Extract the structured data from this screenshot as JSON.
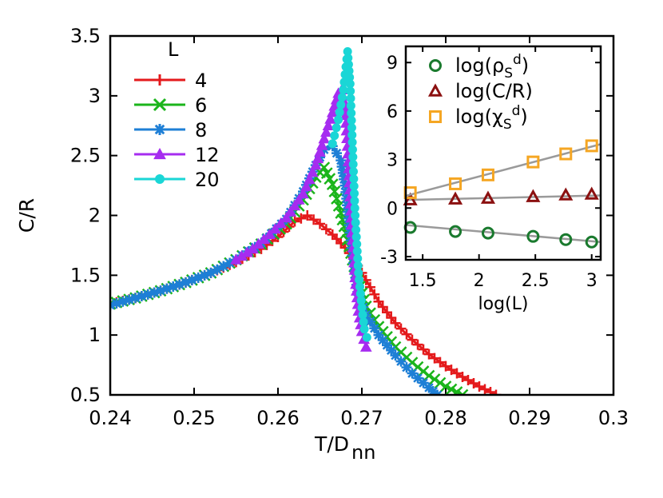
{
  "chart_data": [
    {
      "type": "line",
      "xlabel": "T/D",
      "xlabel_subscript": "nn",
      "ylabel": "C/R",
      "xlim": [
        0.24,
        0.3
      ],
      "ylim": [
        0.5,
        3.5
      ],
      "xticks": [
        "0.24",
        "0.25",
        "0.26",
        "0.27",
        "0.28",
        "0.29",
        "0.3"
      ],
      "yticks": [
        "0.5",
        "1",
        "1.5",
        "2",
        "2.5",
        "3",
        "3.5"
      ],
      "grid": false,
      "legend_title": "L",
      "legend_position": "top-left",
      "series": [
        {
          "name": "4",
          "color": "#e41a1c",
          "marker": "plus",
          "points": [
            [
              0.24,
              1.26
            ],
            [
              0.243,
              1.31
            ],
            [
              0.246,
              1.37
            ],
            [
              0.249,
              1.44
            ],
            [
              0.252,
              1.52
            ],
            [
              0.255,
              1.61
            ],
            [
              0.258,
              1.72
            ],
            [
              0.26,
              1.82
            ],
            [
              0.262,
              1.95
            ],
            [
              0.2635,
              2.0
            ],
            [
              0.265,
              1.93
            ],
            [
              0.2665,
              1.84
            ],
            [
              0.268,
              1.73
            ],
            [
              0.269,
              1.64
            ],
            [
              0.27,
              1.52
            ],
            [
              0.271,
              1.4
            ],
            [
              0.272,
              1.28
            ],
            [
              0.274,
              1.1
            ],
            [
              0.276,
              0.96
            ],
            [
              0.278,
              0.84
            ],
            [
              0.28,
              0.74
            ],
            [
              0.282,
              0.65
            ],
            [
              0.284,
              0.57
            ],
            [
              0.286,
              0.5
            ]
          ]
        },
        {
          "name": "6",
          "color": "#1bb51b",
          "marker": "cross",
          "points": [
            [
              0.24,
              1.26
            ],
            [
              0.243,
              1.31
            ],
            [
              0.246,
              1.37
            ],
            [
              0.249,
              1.44
            ],
            [
              0.252,
              1.52
            ],
            [
              0.255,
              1.63
            ],
            [
              0.258,
              1.76
            ],
            [
              0.261,
              1.93
            ],
            [
              0.263,
              2.13
            ],
            [
              0.2645,
              2.32
            ],
            [
              0.2655,
              2.4
            ],
            [
              0.2665,
              2.26
            ],
            [
              0.2675,
              2.02
            ],
            [
              0.2685,
              1.74
            ],
            [
              0.2695,
              1.46
            ],
            [
              0.2705,
              1.24
            ],
            [
              0.272,
              1.07
            ],
            [
              0.274,
              0.9
            ],
            [
              0.276,
              0.77
            ],
            [
              0.278,
              0.66
            ],
            [
              0.28,
              0.57
            ],
            [
              0.282,
              0.5
            ]
          ]
        },
        {
          "name": "8",
          "color": "#1e7fd6",
          "marker": "star",
          "points": [
            [
              0.24,
              1.25
            ],
            [
              0.243,
              1.31
            ],
            [
              0.246,
              1.37
            ],
            [
              0.249,
              1.44
            ],
            [
              0.252,
              1.52
            ],
            [
              0.255,
              1.63
            ],
            [
              0.258,
              1.77
            ],
            [
              0.261,
              1.97
            ],
            [
              0.263,
              2.2
            ],
            [
              0.2645,
              2.42
            ],
            [
              0.2655,
              2.55
            ],
            [
              0.2665,
              2.58
            ],
            [
              0.2675,
              2.46
            ],
            [
              0.268,
              2.25
            ],
            [
              0.2685,
              1.92
            ],
            [
              0.269,
              1.6
            ],
            [
              0.2695,
              1.36
            ],
            [
              0.2705,
              1.17
            ],
            [
              0.272,
              1.0
            ],
            [
              0.274,
              0.83
            ],
            [
              0.276,
              0.68
            ],
            [
              0.278,
              0.56
            ],
            [
              0.279,
              0.5
            ]
          ]
        },
        {
          "name": "12",
          "color": "#a62cf0",
          "marker": "triangle",
          "points": [
            [
              0.255,
              1.63
            ],
            [
              0.257,
              1.72
            ],
            [
              0.259,
              1.84
            ],
            [
              0.261,
              1.98
            ],
            [
              0.263,
              2.18
            ],
            [
              0.2645,
              2.42
            ],
            [
              0.2655,
              2.64
            ],
            [
              0.2665,
              2.86
            ],
            [
              0.2672,
              3.02
            ],
            [
              0.2676,
              3.05
            ],
            [
              0.268,
              2.9
            ],
            [
              0.2684,
              2.45
            ],
            [
              0.2688,
              1.92
            ],
            [
              0.2692,
              1.48
            ],
            [
              0.2696,
              1.2
            ],
            [
              0.27,
              1.03
            ],
            [
              0.2705,
              0.9
            ]
          ]
        },
        {
          "name": "20",
          "color": "#1ad6d6",
          "marker": "circle",
          "points": [
            [
              0.2665,
              2.6
            ],
            [
              0.2672,
              2.8
            ],
            [
              0.2678,
              3.05
            ],
            [
              0.2683,
              3.37
            ],
            [
              0.2686,
              3.1
            ],
            [
              0.2689,
              2.55
            ],
            [
              0.2692,
              2.0
            ],
            [
              0.2696,
              1.52
            ],
            [
              0.27,
              1.23
            ],
            [
              0.2703,
              1.05
            ],
            [
              0.2706,
              0.98
            ]
          ]
        }
      ]
    },
    {
      "type": "scatter",
      "xlabel": "log(L)",
      "xlim": [
        1.35,
        3.08
      ],
      "ylim": [
        -3.2,
        10
      ],
      "xticks": [
        "1.5",
        "2",
        "2.5",
        "3"
      ],
      "yticks": [
        "-3",
        "0",
        "3",
        "6",
        "9"
      ],
      "legend_position": "top-right",
      "series": [
        {
          "name": "log(ρ",
          "sub": "S",
          "sup": "d",
          "suffix": ")",
          "color": "#1a7a2e",
          "marker": "circle",
          "x": [
            1.39,
            1.79,
            2.08,
            2.48,
            2.77,
            3.0
          ],
          "y": [
            -1.2,
            -1.45,
            -1.55,
            -1.75,
            -1.95,
            -2.1
          ],
          "fit": [
            [
              1.35,
              -1.05
            ],
            [
              3.08,
              -2.1
            ]
          ]
        },
        {
          "name": "log(C/R)",
          "color": "#8b1010",
          "marker": "triangle",
          "x": [
            1.39,
            1.79,
            2.08,
            2.48,
            2.77,
            3.0
          ],
          "y": [
            0.5,
            0.55,
            0.6,
            0.7,
            0.8,
            0.85
          ],
          "fit": [
            [
              1.35,
              0.5
            ],
            [
              3.08,
              0.78
            ]
          ]
        },
        {
          "name": "log(χ",
          "sub": "S",
          "sup": "d",
          "suffix": ")",
          "color": "#f5a623",
          "marker": "square",
          "x": [
            1.39,
            1.79,
            2.08,
            2.48,
            2.77,
            3.0
          ],
          "y": [
            0.95,
            1.5,
            2.05,
            2.85,
            3.35,
            3.85
          ],
          "fit": [
            [
              1.35,
              0.75
            ],
            [
              3.08,
              3.95
            ]
          ]
        }
      ]
    }
  ]
}
